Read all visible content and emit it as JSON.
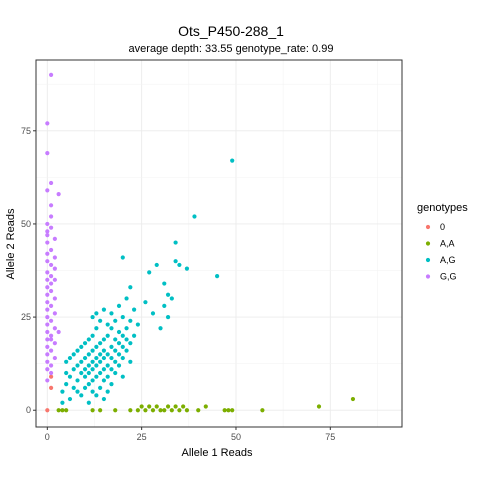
{
  "chart_data": {
    "type": "scatter",
    "title": "Ots_P450-288_1",
    "subtitle": "average depth:  33.55  genotype_rate:  0.99",
    "xlabel": "Allele 1 Reads",
    "ylabel": "Allele 2 Reads",
    "xlim": [
      -3,
      94
    ],
    "ylim": [
      -4.5,
      94
    ],
    "x_ticks": [
      0,
      25,
      50,
      75
    ],
    "y_ticks": [
      0,
      25,
      50,
      75
    ],
    "grid": true,
    "legend": {
      "title": "genotypes",
      "position": "right"
    },
    "series": [
      {
        "name": "0",
        "color": "#F8766D",
        "points": [
          [
            0,
            0
          ],
          [
            1,
            9
          ],
          [
            1,
            6
          ]
        ]
      },
      {
        "name": "A,A",
        "color": "#7CAE00",
        "points": [
          [
            3,
            0
          ],
          [
            4,
            0
          ],
          [
            5,
            0
          ],
          [
            12,
            0
          ],
          [
            14,
            0
          ],
          [
            18,
            0
          ],
          [
            22,
            0
          ],
          [
            24,
            0
          ],
          [
            25,
            1
          ],
          [
            26,
            0
          ],
          [
            27,
            1
          ],
          [
            28,
            0
          ],
          [
            29,
            1
          ],
          [
            30,
            0
          ],
          [
            31,
            0
          ],
          [
            32,
            1
          ],
          [
            33,
            0
          ],
          [
            34,
            1
          ],
          [
            35,
            0
          ],
          [
            36,
            1
          ],
          [
            37,
            0
          ],
          [
            40,
            0
          ],
          [
            42,
            1
          ],
          [
            47,
            0
          ],
          [
            48,
            0
          ],
          [
            49,
            0
          ],
          [
            57,
            0
          ],
          [
            72,
            1
          ],
          [
            81,
            3
          ]
        ]
      },
      {
        "name": "A,G",
        "color": "#00BFC4",
        "points": [
          [
            4,
            2
          ],
          [
            4,
            5
          ],
          [
            5,
            7
          ],
          [
            5,
            10
          ],
          [
            5,
            13
          ],
          [
            6,
            3
          ],
          [
            6,
            9
          ],
          [
            6,
            14
          ],
          [
            7,
            6
          ],
          [
            7,
            11
          ],
          [
            7,
            15
          ],
          [
            8,
            8
          ],
          [
            8,
            12
          ],
          [
            8,
            16
          ],
          [
            8,
            5
          ],
          [
            9,
            4
          ],
          [
            9,
            10
          ],
          [
            9,
            13
          ],
          [
            9,
            17
          ],
          [
            10,
            6
          ],
          [
            10,
            9
          ],
          [
            10,
            11
          ],
          [
            10,
            14
          ],
          [
            10,
            18
          ],
          [
            11,
            7
          ],
          [
            11,
            10
          ],
          [
            11,
            12
          ],
          [
            11,
            15
          ],
          [
            11,
            19
          ],
          [
            11,
            2
          ],
          [
            12,
            5
          ],
          [
            12,
            8
          ],
          [
            12,
            11
          ],
          [
            12,
            13
          ],
          [
            12,
            16
          ],
          [
            12,
            20
          ],
          [
            12,
            25
          ],
          [
            13,
            4
          ],
          [
            13,
            9
          ],
          [
            13,
            12
          ],
          [
            13,
            14
          ],
          [
            13,
            17
          ],
          [
            13,
            22
          ],
          [
            13,
            26
          ],
          [
            14,
            6
          ],
          [
            14,
            10
          ],
          [
            14,
            13
          ],
          [
            14,
            15
          ],
          [
            14,
            18
          ],
          [
            14,
            24
          ],
          [
            15,
            3
          ],
          [
            15,
            8
          ],
          [
            15,
            11
          ],
          [
            15,
            14
          ],
          [
            15,
            16
          ],
          [
            15,
            19
          ],
          [
            15,
            27
          ],
          [
            16,
            5
          ],
          [
            16,
            9
          ],
          [
            16,
            12
          ],
          [
            16,
            15
          ],
          [
            16,
            20
          ],
          [
            16,
            23
          ],
          [
            17,
            7
          ],
          [
            17,
            11
          ],
          [
            17,
            14
          ],
          [
            17,
            17
          ],
          [
            17,
            22
          ],
          [
            17,
            26
          ],
          [
            18,
            10
          ],
          [
            18,
            13
          ],
          [
            18,
            16
          ],
          [
            18,
            19
          ],
          [
            18,
            24
          ],
          [
            19,
            12
          ],
          [
            19,
            15
          ],
          [
            19,
            18
          ],
          [
            19,
            21
          ],
          [
            19,
            28
          ],
          [
            20,
            9
          ],
          [
            20,
            14
          ],
          [
            20,
            17
          ],
          [
            20,
            20
          ],
          [
            20,
            25
          ],
          [
            20,
            41
          ],
          [
            21,
            16
          ],
          [
            21,
            19
          ],
          [
            21,
            22
          ],
          [
            21,
            30
          ],
          [
            22,
            13
          ],
          [
            22,
            18
          ],
          [
            22,
            24
          ],
          [
            22,
            33
          ],
          [
            23,
            20
          ],
          [
            23,
            27
          ],
          [
            24,
            23
          ],
          [
            26,
            29
          ],
          [
            27,
            37
          ],
          [
            28,
            26
          ],
          [
            29,
            39
          ],
          [
            30,
            22
          ],
          [
            31,
            28
          ],
          [
            31,
            34
          ],
          [
            32,
            25
          ],
          [
            32,
            31
          ],
          [
            33,
            30
          ],
          [
            34,
            45
          ],
          [
            34,
            40
          ],
          [
            35,
            39
          ],
          [
            37,
            38
          ],
          [
            39,
            52
          ],
          [
            45,
            36
          ],
          [
            49,
            67
          ]
        ]
      },
      {
        "name": "G,G",
        "color": "#C77CFF",
        "points": [
          [
            1,
            90
          ],
          [
            0,
            77
          ],
          [
            0,
            69
          ],
          [
            1,
            61
          ],
          [
            0,
            59
          ],
          [
            3,
            58
          ],
          [
            1,
            55
          ],
          [
            0,
            50
          ],
          [
            1,
            52
          ],
          [
            0,
            47
          ],
          [
            2,
            46
          ],
          [
            0,
            45
          ],
          [
            1,
            43
          ],
          [
            0,
            42
          ],
          [
            2,
            41
          ],
          [
            0,
            40
          ],
          [
            1,
            39
          ],
          [
            0,
            37
          ],
          [
            1,
            36
          ],
          [
            0,
            35
          ],
          [
            2,
            35
          ],
          [
            0,
            33
          ],
          [
            1,
            32
          ],
          [
            0,
            31
          ],
          [
            2,
            30
          ],
          [
            0,
            29
          ],
          [
            1,
            28
          ],
          [
            0,
            27
          ],
          [
            2,
            26
          ],
          [
            0,
            25
          ],
          [
            1,
            24
          ],
          [
            0,
            23
          ],
          [
            2,
            22
          ],
          [
            0,
            21
          ],
          [
            1,
            20
          ],
          [
            0,
            19
          ],
          [
            2,
            18
          ],
          [
            0,
            17
          ],
          [
            1,
            16
          ],
          [
            0,
            15
          ],
          [
            0,
            13
          ],
          [
            1,
            12
          ],
          [
            0,
            11
          ],
          [
            1,
            49
          ],
          [
            0,
            48
          ],
          [
            2,
            38
          ],
          [
            1,
            34
          ],
          [
            3,
            21
          ],
          [
            1,
            19
          ],
          [
            2,
            14
          ],
          [
            1,
            10
          ],
          [
            0,
            8
          ]
        ]
      }
    ]
  }
}
